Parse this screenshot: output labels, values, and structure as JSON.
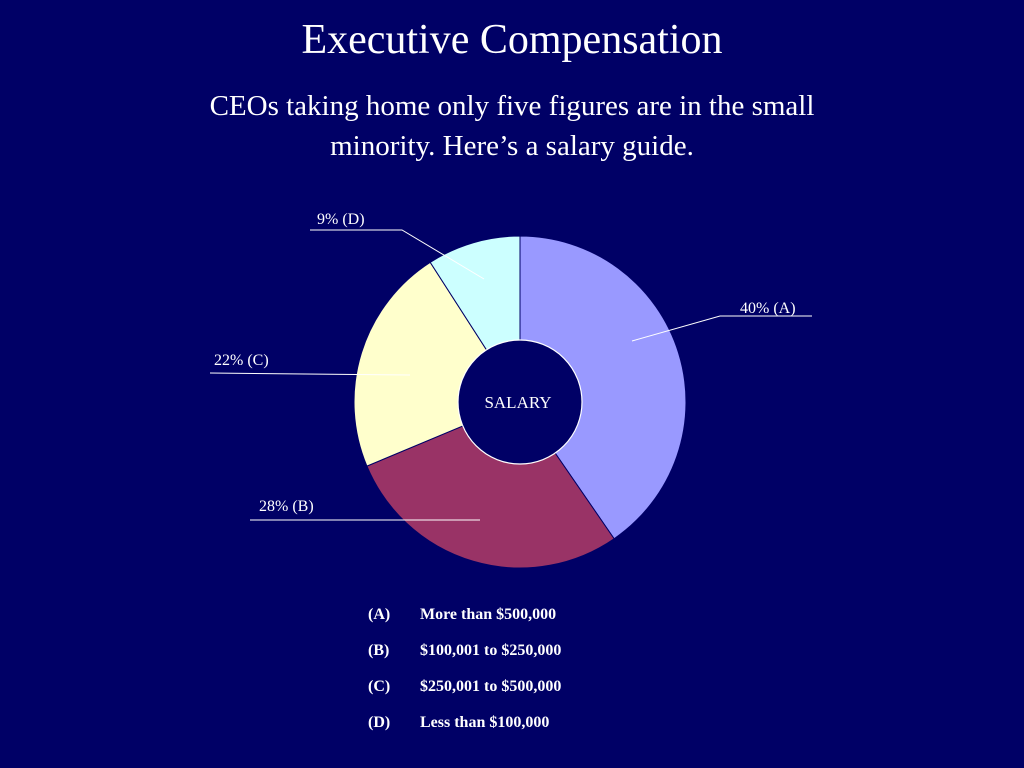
{
  "slide": {
    "title": "Executive Compensation",
    "subtitle_line1": "CEOs taking home only five figures are in the small",
    "subtitle_line2": "minority.  Here’s a salary guide."
  },
  "chart_data": {
    "type": "pie",
    "variant": "donut",
    "center_label": "SALARY",
    "slices": [
      {
        "key": "A",
        "value": 40,
        "label": "40% (A)",
        "color": "#9999ff"
      },
      {
        "key": "B",
        "value": 28,
        "label": "28% (B)",
        "color": "#993366"
      },
      {
        "key": "C",
        "value": 22,
        "label": "22% (C)",
        "color": "#ffffcc"
      },
      {
        "key": "D",
        "value": 9,
        "label": "9% (D)",
        "color": "#ccffff"
      }
    ],
    "legend": [
      {
        "key": "(A)",
        "text": "More than $500,000"
      },
      {
        "key": "(B)",
        "text": "$100,001 to $250,000"
      },
      {
        "key": "(C)",
        "text": "$250,001 to $500,000"
      },
      {
        "key": "(D)",
        "text": "Less than $100,000"
      }
    ]
  }
}
